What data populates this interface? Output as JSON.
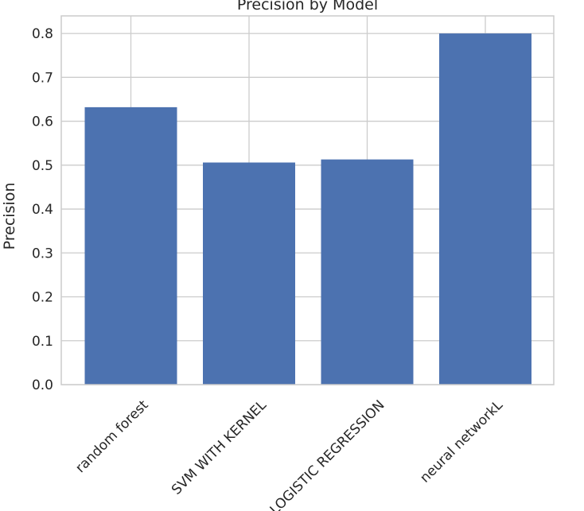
{
  "chart_data": {
    "type": "bar",
    "title": "Precision by Model",
    "xlabel": "",
    "ylabel": "Precision",
    "categories": [
      "random forest",
      "SVM WITH KERNEL",
      "LOGISTIC REGRESSION",
      "neural networkL"
    ],
    "values": [
      0.632,
      0.506,
      0.513,
      0.8
    ],
    "ylim": [
      0,
      0.84
    ],
    "yticks": [
      "0.0",
      "0.1",
      "0.2",
      "0.3",
      "0.4",
      "0.5",
      "0.6",
      "0.7",
      "0.8"
    ],
    "ytick_values": [
      0.0,
      0.1,
      0.2,
      0.3,
      0.4,
      0.5,
      0.6,
      0.7,
      0.8
    ],
    "grid": true,
    "bar_color": "#4c72b0",
    "grid_color": "#cccccc",
    "spine_color": "#cccccc"
  }
}
